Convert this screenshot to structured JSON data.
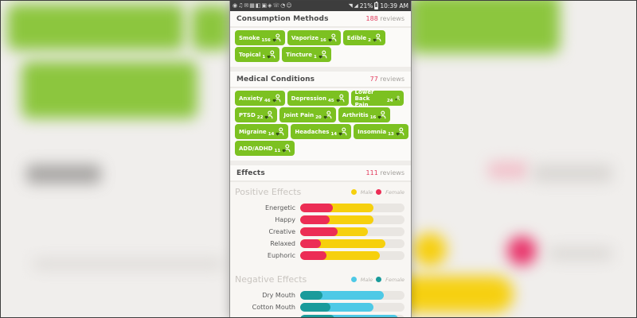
{
  "status_bar": {
    "left_icons": [
      {
        "glyph": "◉",
        "name": "notification-circle-icon"
      },
      {
        "glyph": "♫",
        "name": "music-icon"
      },
      {
        "glyph": "✉",
        "name": "mail-icon"
      },
      {
        "glyph": "▦",
        "name": "app-grid-icon"
      },
      {
        "glyph": "◧",
        "name": "screenshot-icon"
      },
      {
        "glyph": "▣",
        "name": "download-icon"
      },
      {
        "glyph": "◈",
        "name": "sync-icon"
      },
      {
        "glyph": "☏",
        "name": "call-icon"
      },
      {
        "glyph": "◔",
        "name": "clock-icon"
      },
      {
        "glyph": "☺",
        "name": "chat-icon"
      }
    ],
    "network_glyph": "◥",
    "signal_glyph": "◢",
    "battery_percent": "21%",
    "time": "10:39 AM"
  },
  "sections": {
    "consumption": {
      "title": "Consumption Methods",
      "reviews_count": "188",
      "reviews_label": "reviews",
      "rows": [
        [
          {
            "label": "Smoke",
            "count": "156"
          },
          {
            "label": "Vaporize",
            "count": "16"
          },
          {
            "label": "Edible",
            "count": "2"
          }
        ],
        [
          {
            "label": "Topical",
            "count": "1"
          },
          {
            "label": "Tincture",
            "count": "1"
          }
        ]
      ]
    },
    "medical": {
      "title": "Medical Conditions",
      "reviews_count": "77",
      "reviews_label": "reviews",
      "rows": [
        [
          {
            "label": "Anxiety",
            "count": "46"
          },
          {
            "label": "Depression",
            "count": "45"
          },
          {
            "label": "Lower Back Pain",
            "count": "24"
          }
        ],
        [
          {
            "label": "PTSD",
            "count": "22"
          },
          {
            "label": "Joint Pain",
            "count": "20"
          },
          {
            "label": "Arthritis",
            "count": "16"
          }
        ],
        [
          {
            "label": "Migraine",
            "count": "14"
          },
          {
            "label": "Headaches",
            "count": "14"
          },
          {
            "label": "Insomnia",
            "count": "13"
          }
        ],
        [
          {
            "label": "ADD/ADHD",
            "count": "11"
          }
        ]
      ]
    },
    "effects": {
      "title": "Effects",
      "reviews_count": "111",
      "reviews_label": "reviews"
    }
  },
  "chart_data": [
    {
      "type": "bar",
      "title": "Positive Effects",
      "orientation": "horizontal",
      "units": "percent of track width (no axis shown)",
      "legend": [
        "Male",
        "Female"
      ],
      "legend_position": "top-right",
      "categories": [
        "Energetic",
        "Happy",
        "Creative",
        "Relaxed",
        "Euphoric"
      ],
      "series": [
        {
          "name": "Male",
          "color": "#f6d00d",
          "values": [
            70,
            70,
            65,
            82,
            76
          ]
        },
        {
          "name": "Female",
          "color": "#ec2d55",
          "values": [
            31,
            28,
            36,
            20,
            25
          ]
        }
      ]
    },
    {
      "type": "bar",
      "title": "Negative Effects",
      "orientation": "horizontal",
      "units": "percent of track width (no axis shown)",
      "legend": [
        "Male",
        "Female"
      ],
      "legend_position": "top-right",
      "categories": [
        "Dry Mouth",
        "Cotton Mouth",
        ""
      ],
      "series": [
        {
          "name": "Male",
          "color": "#4ec9e6",
          "values": [
            80,
            70,
            94
          ]
        },
        {
          "name": "Female",
          "color": "#1a9b9b",
          "values": [
            21,
            29,
            33
          ]
        }
      ]
    }
  ],
  "colors": {
    "pill_green": "#7cc121",
    "review_count_red": "#e23c5e",
    "male_positive_yellow": "#f6d00d",
    "female_positive_red": "#ec2d55",
    "male_negative_blue": "#4ec9e6",
    "female_negative_teal": "#1a9b9b",
    "bar_track_gray": "#e9e6e2"
  }
}
